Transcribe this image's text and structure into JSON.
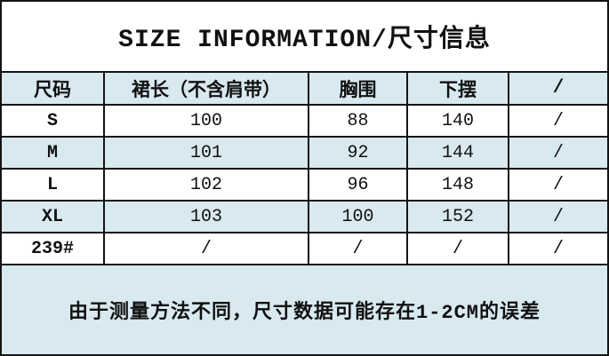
{
  "title": "SIZE INFORMATION/尺寸信息",
  "table": {
    "headers": [
      "尺码",
      "裙长（不含肩带）",
      "胸围",
      "下摆",
      "/"
    ],
    "rows": [
      [
        "S",
        "100",
        "88",
        "140",
        "/"
      ],
      [
        "M",
        "101",
        "92",
        "144",
        "/"
      ],
      [
        "L",
        "102",
        "96",
        "148",
        "/"
      ],
      [
        "XL",
        "103",
        "100",
        "152",
        "/"
      ],
      [
        "239#",
        "/",
        "/",
        "/",
        "/"
      ]
    ]
  },
  "footer_note": "由于测量方法不同，尺寸数据可能存在1-2CM的误差",
  "colors": {
    "row_alt": "#d8e9f0",
    "border": "#141414",
    "text": "#111111",
    "background": "#ffffff"
  }
}
